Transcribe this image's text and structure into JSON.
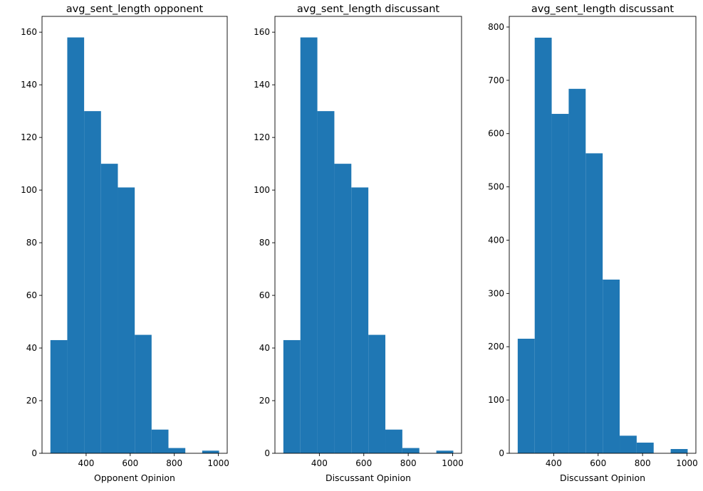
{
  "chart_data": [
    {
      "type": "bar",
      "title": "avg_sent_length opponent",
      "xlabel": "Opponent Opinion",
      "ylabel": "",
      "bin_edges": [
        238,
        314.5,
        391,
        467.5,
        544,
        620.5,
        697,
        773.5,
        850,
        926.5,
        1003
      ],
      "values": [
        43,
        158,
        130,
        110,
        101,
        45,
        9,
        2,
        0,
        1
      ],
      "xlim": [
        200,
        1040
      ],
      "ylim": [
        0,
        166
      ],
      "xticks": [
        400,
        600,
        800,
        1000
      ],
      "yticks": [
        0,
        20,
        40,
        60,
        80,
        100,
        120,
        140,
        160
      ],
      "color": "#1f77b4",
      "grid": false
    },
    {
      "type": "bar",
      "title": "avg_sent_length discussant",
      "xlabel": "Discussant Opinion",
      "ylabel": "",
      "bin_edges": [
        238,
        314.5,
        391,
        467.5,
        544,
        620.5,
        697,
        773.5,
        850,
        926.5,
        1003
      ],
      "values": [
        43,
        158,
        130,
        110,
        101,
        45,
        9,
        2,
        0,
        1
      ],
      "xlim": [
        200,
        1040
      ],
      "ylim": [
        0,
        166
      ],
      "xticks": [
        400,
        600,
        800,
        1000
      ],
      "yticks": [
        0,
        20,
        40,
        60,
        80,
        100,
        120,
        140,
        160
      ],
      "color": "#1f77b4",
      "grid": false
    },
    {
      "type": "bar",
      "title": "avg_sent_length discussant",
      "xlabel": "Discussant Opinion",
      "ylabel": "",
      "bin_edges": [
        238,
        314.5,
        391,
        467.5,
        544,
        620.5,
        697,
        773.5,
        850,
        926.5,
        1003
      ],
      "values": [
        215,
        780,
        637,
        684,
        563,
        326,
        33,
        20,
        0,
        8
      ],
      "xlim": [
        200,
        1040
      ],
      "ylim": [
        0,
        820
      ],
      "xticks": [
        400,
        600,
        800,
        1000
      ],
      "yticks": [
        0,
        100,
        200,
        300,
        400,
        500,
        600,
        700,
        800
      ],
      "color": "#1f77b4",
      "grid": false
    }
  ]
}
